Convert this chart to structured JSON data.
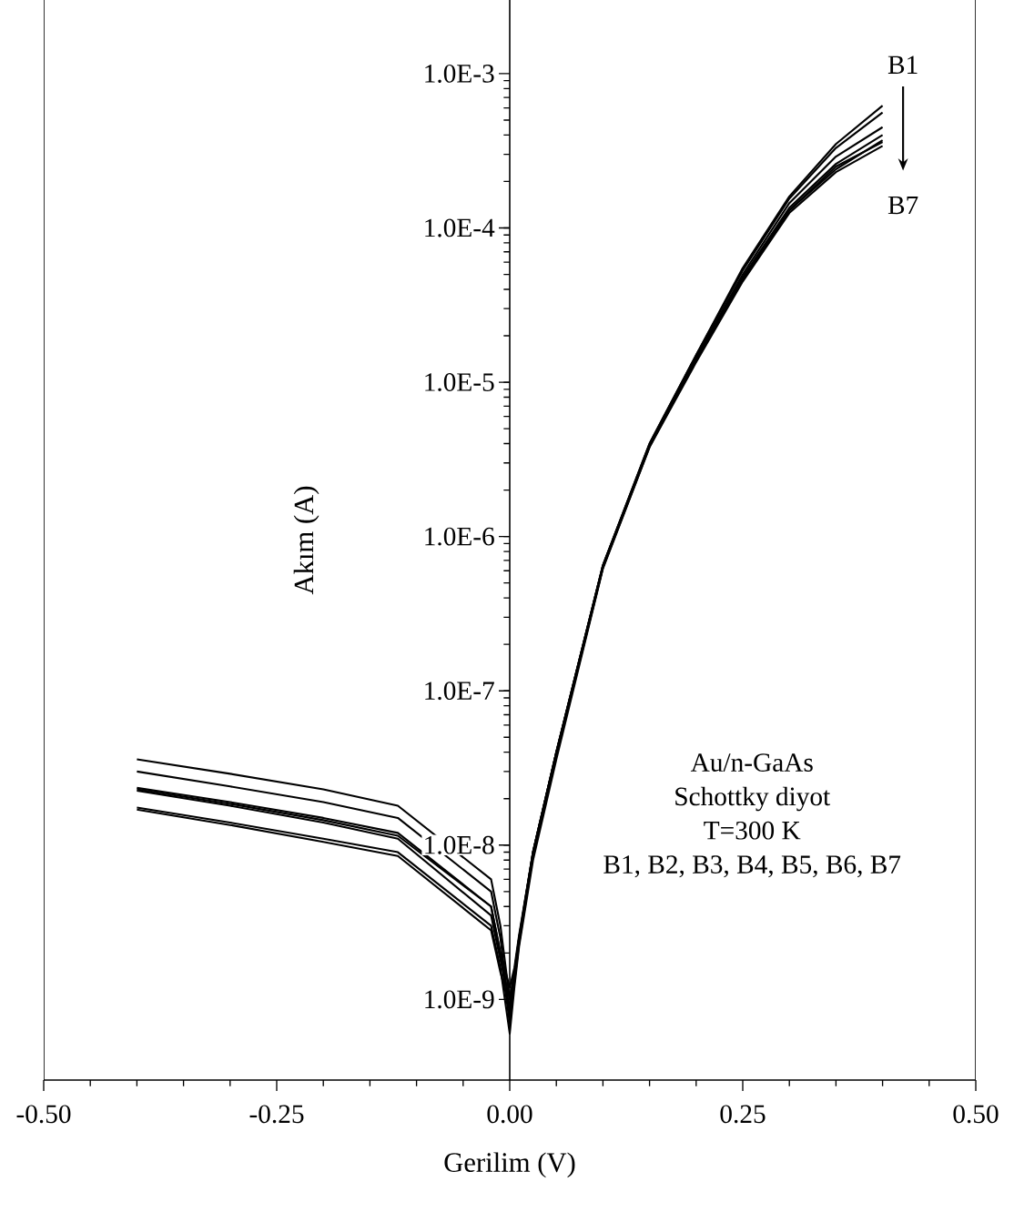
{
  "chart_data": {
    "type": "line",
    "xlabel": "Gerilim (V)",
    "ylabel": "Akım (A)",
    "log": "y",
    "xlim": [
      -0.5,
      0.5
    ],
    "ylim": [
      3e-10,
      0.003
    ],
    "xticks": [
      {
        "value": -0.5,
        "label": "-0.50"
      },
      {
        "value": -0.25,
        "label": "-0.25"
      },
      {
        "value": 0,
        "label": "0.00"
      },
      {
        "value": 0.25,
        "label": "0.25"
      },
      {
        "value": 0.5,
        "label": "0.50"
      }
    ],
    "yticks": [
      {
        "value": 1e-09,
        "label": "1.0E-9"
      },
      {
        "value": 1e-08,
        "label": "1.0E-8"
      },
      {
        "value": 1e-07,
        "label": "1.0E-7"
      },
      {
        "value": 1e-06,
        "label": "1.0E-6"
      },
      {
        "value": 1e-05,
        "label": "1.0E-5"
      },
      {
        "value": 0.0001,
        "label": "1.0E-4"
      },
      {
        "value": 0.001,
        "label": "1.0E-3"
      }
    ],
    "x": [
      -0.4,
      -0.3,
      -0.2,
      -0.12,
      -0.02,
      -0.01,
      0,
      0.005,
      0.01,
      0.025,
      0.05,
      0.1,
      0.15,
      0.2,
      0.25,
      0.3,
      0.35,
      0.4
    ],
    "series": [
      {
        "color": "#000000",
        "values": [
          3.6e-08,
          2.9e-08,
          2.3e-08,
          1.8e-08,
          6e-09,
          3e-09,
          1e-09,
          1.5e-09,
          2.5e-09,
          9e-09,
          4e-08,
          6.5e-07,
          4e-06,
          1.5e-05,
          5.5e-05,
          0.00016,
          0.00035,
          0.00062
        ]
      },
      {
        "color": "#000000",
        "values": [
          3e-08,
          2.4e-08,
          1.9e-08,
          1.5e-08,
          5e-09,
          2.5e-09,
          8e-10,
          1.4e-09,
          2.4e-09,
          9e-09,
          4e-08,
          6.5e-07,
          4e-06,
          1.5e-05,
          5.3e-05,
          0.000155,
          0.00033,
          0.00056
        ]
      },
      {
        "color": "#000000",
        "values": [
          2.35e-08,
          1.9e-08,
          1.5e-08,
          1.2e-08,
          4e-09,
          2e-09,
          7e-10,
          1.3e-09,
          2.3e-09,
          8.5e-09,
          3.8e-08,
          6.3e-07,
          3.9e-06,
          1.45e-05,
          5e-05,
          0.000145,
          0.00029,
          0.00045
        ]
      },
      {
        "color": "#000000",
        "values": [
          2.3e-08,
          1.85e-08,
          1.45e-08,
          1.15e-08,
          4e-09,
          2e-09,
          1.2e-09,
          1.6e-09,
          2.6e-09,
          9e-09,
          4e-08,
          6.5e-07,
          3.9e-06,
          1.4e-05,
          4.8e-05,
          0.000135,
          0.00026,
          0.0004
        ]
      },
      {
        "color": "#000000",
        "values": [
          1.75e-08,
          1.4e-08,
          1.1e-08,
          9e-09,
          3e-09,
          1.6e-09,
          6e-10,
          1.2e-09,
          2.2e-09,
          8e-09,
          3.6e-08,
          6.2e-07,
          3.8e-06,
          1.4e-05,
          4.6e-05,
          0.00013,
          0.00024,
          0.00037
        ]
      },
      {
        "color": "#000000",
        "values": [
          1.7e-08,
          1.35e-08,
          1.05e-08,
          8.5e-09,
          2.8e-09,
          1.5e-09,
          9e-10,
          1.4e-09,
          2.4e-09,
          8.5e-09,
          3.8e-08,
          6.3e-07,
          3.8e-06,
          1.35e-05,
          4.5e-05,
          0.000125,
          0.00023,
          0.00034
        ]
      },
      {
        "color": "#000000",
        "values": [
          2.25e-08,
          1.8e-08,
          1.4e-08,
          1.1e-08,
          3.5e-09,
          1.8e-09,
          1e-09,
          1.5e-09,
          2.5e-09,
          9e-09,
          4e-08,
          6.4e-07,
          3.9e-06,
          1.4e-05,
          4.7e-05,
          0.00013,
          0.00025,
          0.00036
        ]
      }
    ],
    "annotations": [
      "B1",
      "B7",
      "Au/n-GaAs",
      "Schottky diyot",
      "T=300 K",
      "B1, B2, B3, B4, B5, B6, B7"
    ]
  }
}
